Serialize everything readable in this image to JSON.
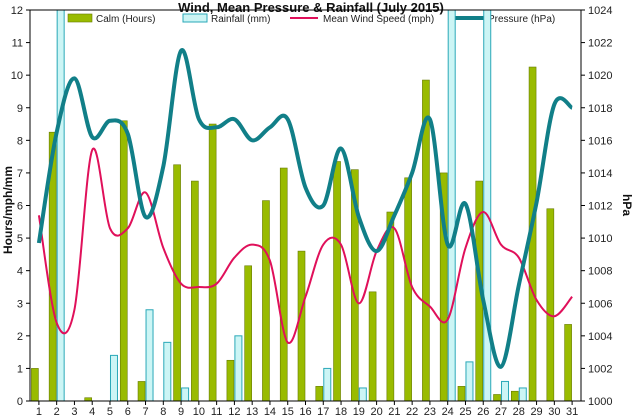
{
  "chart_data": {
    "type": "bar",
    "title": "Wind, Mean Pressure & Rainfall (July 2015)",
    "ylabel": "Hours/mph/mm",
    "y2label": "hPa",
    "x": [
      1,
      2,
      3,
      4,
      5,
      6,
      7,
      8,
      9,
      10,
      11,
      12,
      13,
      14,
      15,
      16,
      17,
      18,
      19,
      20,
      21,
      22,
      23,
      24,
      25,
      26,
      27,
      28,
      29,
      30,
      31
    ],
    "ylim": [
      0,
      12
    ],
    "y2lim": [
      1000,
      1024
    ],
    "series": [
      {
        "name": "Calm (Hours)",
        "kind": "bar",
        "axis": "left",
        "color": "#99bb00",
        "values": [
          1.0,
          8.25,
          0,
          0.1,
          0,
          8.6,
          0.6,
          0,
          7.25,
          6.75,
          8.5,
          1.25,
          4.15,
          6.15,
          7.15,
          4.6,
          0.45,
          7.35,
          7.1,
          3.35,
          5.8,
          6.85,
          9.85,
          7.0,
          0.45,
          6.75,
          0.2,
          0.3,
          10.25,
          5.9,
          2.35
        ]
      },
      {
        "name": "Rainfall (mm)",
        "kind": "bar",
        "axis": "left",
        "color": "#ccf5f5",
        "stroke": "#2aa8b8",
        "values": [
          0,
          12,
          0,
          0,
          1.4,
          0,
          2.8,
          1.8,
          0.4,
          0,
          0,
          2.0,
          0,
          0,
          0,
          0,
          1.0,
          0,
          0.4,
          0,
          0,
          0,
          0,
          12,
          1.2,
          12,
          0.6,
          0.4,
          0,
          0,
          0
        ]
      },
      {
        "name": "Mean Wind Speed (mph)",
        "kind": "line",
        "axis": "left",
        "color": "#e0105a",
        "values": [
          5.7,
          2.4,
          2.8,
          7.7,
          5.3,
          5.3,
          6.4,
          4.7,
          3.6,
          3.5,
          3.6,
          4.4,
          4.8,
          4.3,
          1.8,
          3.2,
          4.8,
          4.8,
          3.0,
          4.6,
          5.3,
          3.5,
          2.9,
          2.5,
          4.7,
          5.8,
          4.8,
          4.4,
          3.1,
          2.6,
          3.2
        ]
      },
      {
        "name": "Pressure (hPa)",
        "kind": "line",
        "axis": "right",
        "color": "#117f88",
        "values": [
          1009.7,
          1016.5,
          1019.8,
          1016.2,
          1017.2,
          1016.4,
          1011.3,
          1014.4,
          1021.5,
          1017.3,
          1016.8,
          1017.3,
          1016.0,
          1016.8,
          1017.3,
          1013.1,
          1012.0,
          1015.5,
          1011.3,
          1009.2,
          1011.4,
          1014.0,
          1017.3,
          1009.6,
          1012.1,
          1006.2,
          1002.1,
          1007.1,
          1012.2,
          1018.2,
          1018.0
        ]
      }
    ],
    "grid": false,
    "legend_position": "top"
  }
}
